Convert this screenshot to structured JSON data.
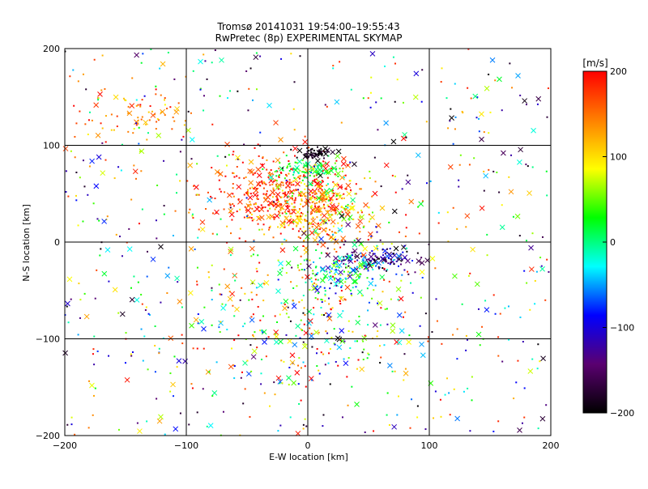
{
  "chart_data": {
    "type": "scatter",
    "title": "Tromsø 20141031 19:54:00–19:55:43",
    "subtitle": "RwPretec (8p) EXPERIMENTAL SKYMAP",
    "xlabel": "E-W location [km]",
    "ylabel": "N-S location [km]",
    "xlim": [
      -200,
      200
    ],
    "ylim": [
      -200,
      200
    ],
    "xticks": [
      -200,
      -100,
      0,
      100,
      200
    ],
    "yticks": [
      -200,
      -100,
      0,
      100,
      200
    ],
    "xtick_labels": [
      "−200",
      "−100",
      "0",
      "100",
      "200"
    ],
    "ytick_labels": [
      "−200",
      "−100",
      "0",
      "100",
      "200"
    ],
    "grid": true,
    "colorbar": {
      "label": "[m/s]",
      "min": -200,
      "max": 200,
      "ticks": [
        200,
        100,
        0,
        -100,
        -200
      ],
      "tick_labels": [
        "200",
        "100",
        "0",
        "−100",
        "−200"
      ],
      "colormap": [
        "#000000",
        "#5a0070",
        "#0000ff",
        "#00ffff",
        "#00ff00",
        "#ffff00",
        "#ff8000",
        "#ff0000"
      ]
    },
    "clusters": [
      {
        "description": "red/orange dense band",
        "center": [
          -20,
          50
        ],
        "spread": [
          35,
          20
        ],
        "count": 420,
        "v_mean": 180,
        "v_spread": 40
      },
      {
        "description": "yellow-green core",
        "center": [
          10,
          30
        ],
        "spread": [
          25,
          20
        ],
        "count": 250,
        "v_mean": 110,
        "v_spread": 50
      },
      {
        "description": "green cap",
        "center": [
          0,
          75
        ],
        "spread": [
          15,
          6
        ],
        "count": 90,
        "v_mean": 20,
        "v_spread": 25
      },
      {
        "description": "black/purple knot",
        "center": [
          5,
          92
        ],
        "spread": [
          6,
          3
        ],
        "count": 60,
        "v_mean": -190,
        "v_spread": 15
      },
      {
        "description": "blue/black streak",
        "center": [
          55,
          -18
        ],
        "spread": [
          18,
          6
        ],
        "count": 120,
        "v_mean": -140,
        "v_spread": 50
      },
      {
        "description": "cyan-green patch",
        "center": [
          30,
          -30
        ],
        "spread": [
          20,
          15
        ],
        "count": 140,
        "v_mean": 0,
        "v_spread": 60
      },
      {
        "description": "yellow-orange NW",
        "center": [
          -140,
          130
        ],
        "spread": [
          25,
          15
        ],
        "count": 80,
        "v_mean": 140,
        "v_spread": 40
      },
      {
        "description": "southern mixed",
        "center": [
          -10,
          -80
        ],
        "spread": [
          50,
          40
        ],
        "count": 260,
        "v_mean": 60,
        "v_spread": 120
      },
      {
        "description": "scattered field",
        "center": [
          0,
          0
        ],
        "spread": [
          200,
          200
        ],
        "count": 700,
        "v_mean": 0,
        "v_spread": 200
      }
    ]
  }
}
